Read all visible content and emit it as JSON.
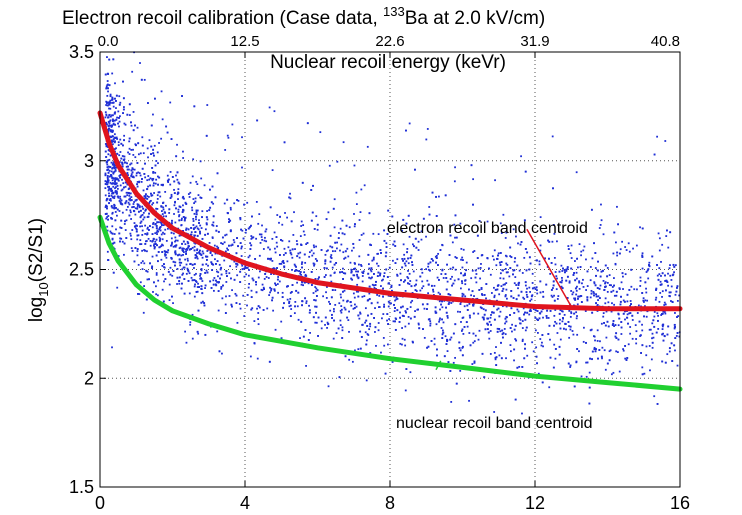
{
  "chart_data": {
    "type": "scatter",
    "title": {
      "pre": "Electron recoil calibration (Case data, ",
      "sup": "133",
      "post": "Ba at 2.0 kV/cm)"
    },
    "xlabel": "",
    "ylabel": {
      "pre": "log",
      "sub": "10",
      "post": "(S2/S1)"
    },
    "secondary_xlabel": "Nuclear recoil energy (keVr)",
    "xlim": [
      0,
      16
    ],
    "ylim": [
      1.5,
      3.5
    ],
    "x_ticks": [
      "0",
      "4",
      "8",
      "12",
      "16"
    ],
    "y_ticks": [
      "1.5",
      "2",
      "2.5",
      "3",
      "3.5"
    ],
    "top_ticks": [
      "0.0",
      "12.5",
      "22.6",
      "31.9",
      "40.8"
    ],
    "grid": true,
    "series": [
      {
        "kind": "scatter",
        "color": "#1f2fd6",
        "approx_count": 4500,
        "description_band": [
          [
            0.2,
            3.05,
            0.18
          ],
          [
            0.5,
            2.95,
            0.18
          ],
          [
            1,
            2.82,
            0.17
          ],
          [
            2,
            2.66,
            0.16
          ],
          [
            3,
            2.57,
            0.15
          ],
          [
            4,
            2.51,
            0.15
          ],
          [
            6,
            2.44,
            0.15
          ],
          [
            8,
            2.4,
            0.15
          ],
          [
            10,
            2.37,
            0.15
          ],
          [
            12,
            2.35,
            0.15
          ],
          [
            14,
            2.34,
            0.15
          ],
          [
            16,
            2.33,
            0.15
          ]
        ]
      },
      {
        "name": "electron recoil band centroid",
        "kind": "line",
        "color": "#e0141e",
        "x": [
          0,
          0.25,
          0.5,
          1,
          1.5,
          2,
          3,
          4,
          5,
          6,
          8,
          10,
          12,
          14,
          16
        ],
        "y": [
          3.22,
          3.08,
          2.98,
          2.85,
          2.76,
          2.69,
          2.6,
          2.53,
          2.48,
          2.44,
          2.39,
          2.36,
          2.33,
          2.32,
          2.32
        ]
      },
      {
        "name": "nuclear recoil band centroid",
        "kind": "line",
        "color": "#20d030",
        "x": [
          0,
          0.25,
          0.5,
          1,
          1.5,
          2,
          3,
          4,
          5,
          6,
          8,
          10,
          12,
          14,
          16
        ],
        "y": [
          2.74,
          2.62,
          2.54,
          2.43,
          2.36,
          2.31,
          2.25,
          2.2,
          2.17,
          2.14,
          2.09,
          2.05,
          2.01,
          1.98,
          1.95
        ]
      }
    ],
    "annotations": [
      {
        "text": "electron recoil band centroid",
        "target_series": 1,
        "at": [
          13,
          2.33
        ],
        "label_at": [
          11.5,
          2.63
        ]
      },
      {
        "text": "nuclear recoil band centroid",
        "target_series": 2,
        "at": [
          9.4,
          2.08
        ],
        "label_at": [
          11.2,
          1.8
        ]
      }
    ]
  }
}
